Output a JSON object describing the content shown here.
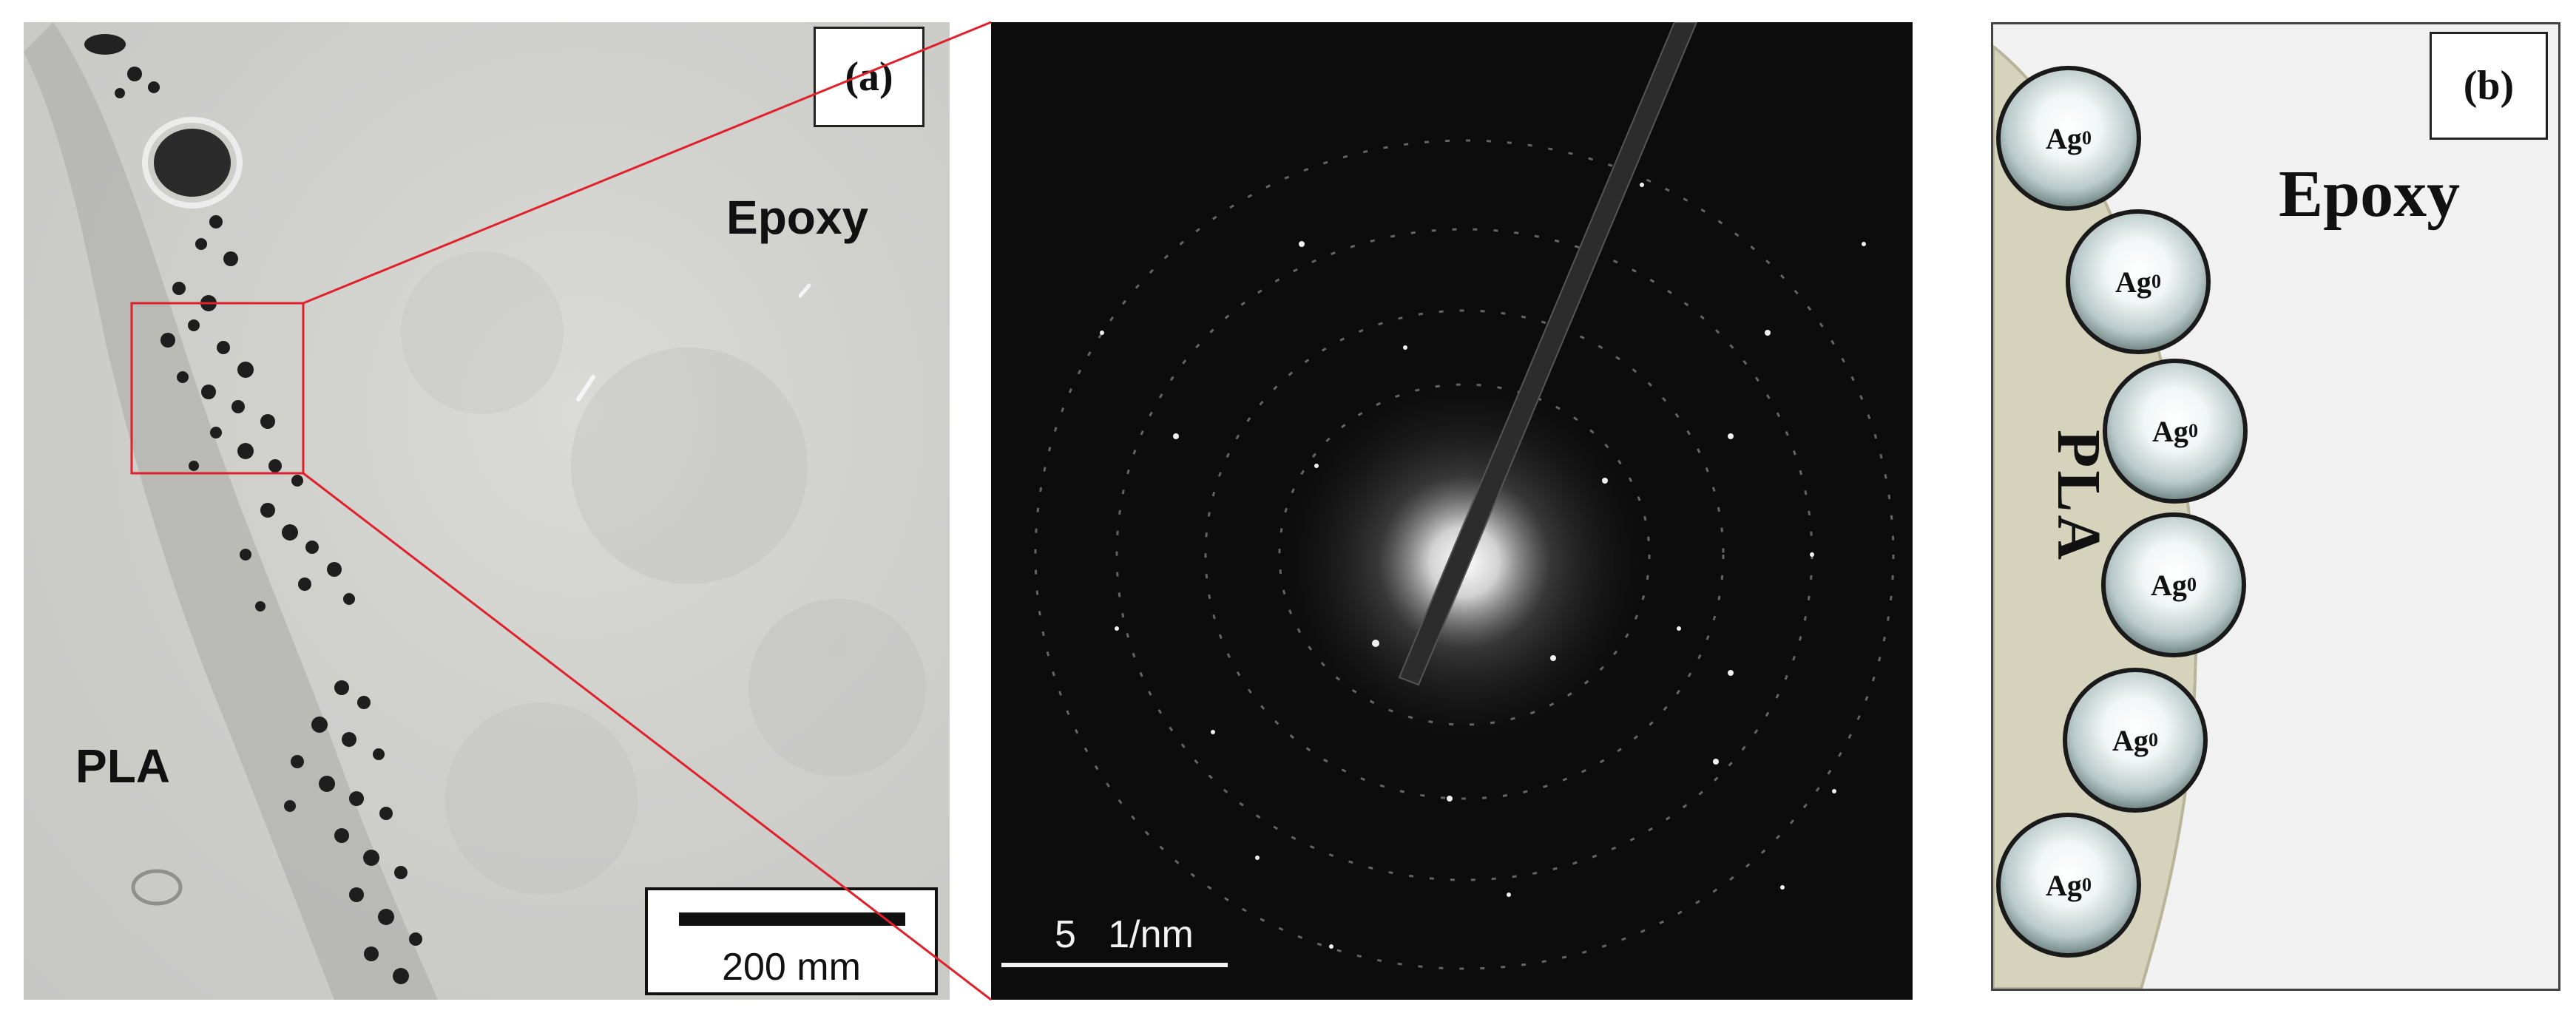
{
  "panel_a": {
    "label": "(a)",
    "region_epoxy": "Epoxy",
    "region_pla": "PLA",
    "scale_bar_text": "200 mm"
  },
  "panel_saed": {
    "scale_bar_text": "5   1/nm"
  },
  "panel_b": {
    "label": "(b)",
    "region_epoxy": "Epoxy",
    "region_pla": "PLA",
    "particle_symbol": "Ag",
    "particle_oxidation": "0",
    "particle_count": 6
  },
  "colors": {
    "zoom_box": "#e0202a",
    "pla_fill": "#d6d3bd",
    "epoxy_fill": "#f1f1f1",
    "saed_background": "#0c0c0c"
  }
}
